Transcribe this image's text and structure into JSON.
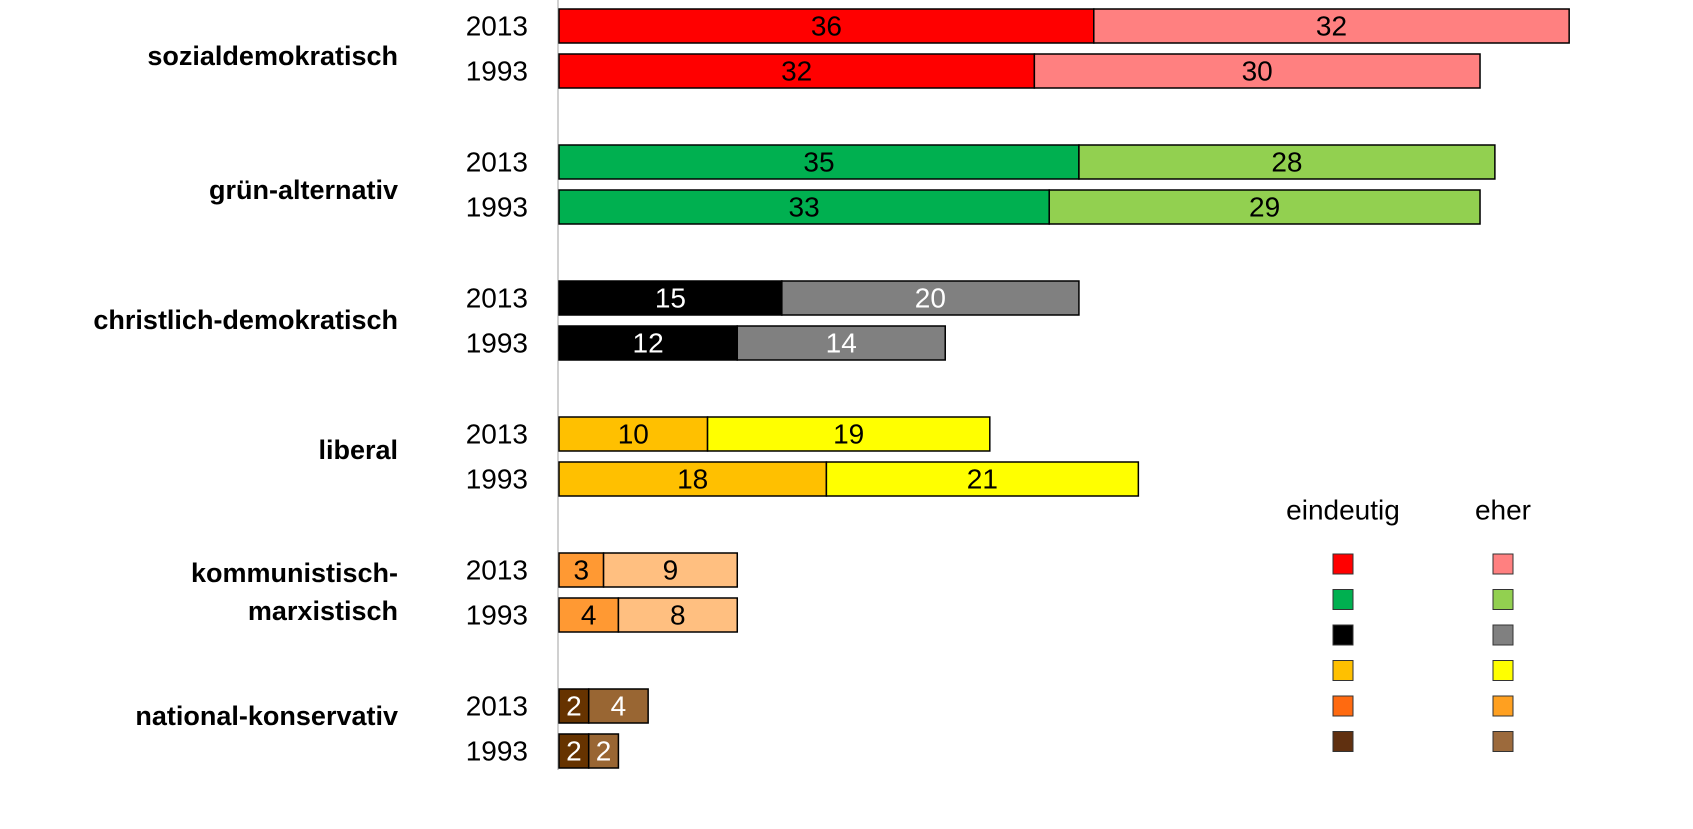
{
  "chart_data": {
    "type": "bar",
    "orientation": "horizontal",
    "stacked": true,
    "categories": [
      "sozialdemokratisch",
      "grün-alternativ",
      "christlich-demokratisch",
      "liberal",
      "kommunistisch-\nmarxistisch",
      "national-konservativ"
    ],
    "subcategories": [
      "2013",
      "1993"
    ],
    "xlim": [
      0,
      76
    ],
    "series": [
      {
        "name": "eindeutig",
        "values": [
          [
            36,
            32
          ],
          [
            35,
            33
          ],
          [
            15,
            12
          ],
          [
            10,
            18
          ],
          [
            3,
            4
          ],
          [
            2,
            2
          ]
        ],
        "colors": [
          "#ff0000",
          "#00b050",
          "#000000",
          "#ffc000",
          "#ff9933",
          "#663300"
        ],
        "label_colors": [
          "#000000",
          "#000000",
          "#ffffff",
          "#000000",
          "#000000",
          "#ffffff"
        ],
        "legend_colors": [
          "#ff0000",
          "#00b050",
          "#000000",
          "#ffc000",
          "#ff6a10",
          "#603010"
        ]
      },
      {
        "name": "eher",
        "values": [
          [
            32,
            30
          ],
          [
            28,
            29
          ],
          [
            20,
            14
          ],
          [
            19,
            21
          ],
          [
            9,
            8
          ],
          [
            4,
            2
          ]
        ],
        "colors": [
          "#ff8080",
          "#92d050",
          "#808080",
          "#ffff00",
          "#ffbf80",
          "#996633"
        ],
        "label_colors": [
          "#000000",
          "#000000",
          "#ffffff",
          "#000000",
          "#000000",
          "#ffffff"
        ],
        "legend_colors": [
          "#ff8080",
          "#92d050",
          "#808080",
          "#ffff00",
          "#ffa020",
          "#9c6a3c"
        ]
      }
    ]
  }
}
